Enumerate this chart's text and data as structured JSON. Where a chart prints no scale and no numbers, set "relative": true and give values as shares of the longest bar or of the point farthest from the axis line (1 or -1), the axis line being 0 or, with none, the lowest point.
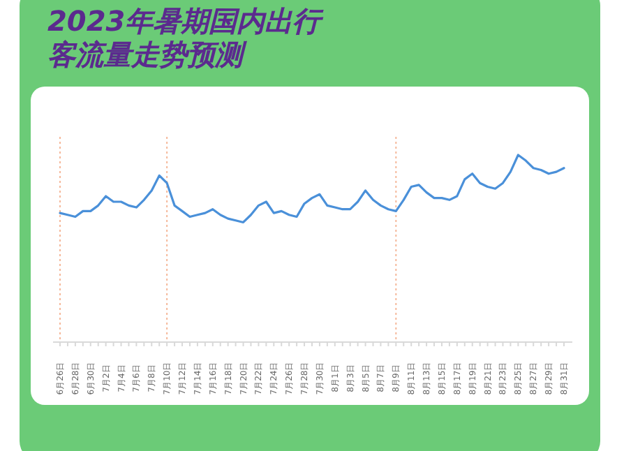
{
  "chart_data": {
    "type": "line",
    "title": "2023年暑期国内出行",
    "subtitle": "客流量走势预测",
    "relative": true,
    "marker": "none",
    "line_style": "solid",
    "categories": [
      "6月26日",
      null,
      "6月28日",
      null,
      "6月30日",
      null,
      "7月2日",
      null,
      "7月4日",
      null,
      "7月6日",
      null,
      "7月8日",
      null,
      "7月10日",
      null,
      "7月12日",
      null,
      "7月14日",
      null,
      "7月16日",
      null,
      "7月18日",
      null,
      "7月20日",
      null,
      "7月22日",
      null,
      "7月24日",
      null,
      "7月26日",
      null,
      "7月28日",
      null,
      "7月30日",
      null,
      "8月1日",
      null,
      "8月3日",
      null,
      "8月5日",
      null,
      "8月7日",
      null,
      "8月9日",
      null,
      "8月11日",
      null,
      "8月13日",
      null,
      "8月15日",
      null,
      "8月17日",
      null,
      "8月19日",
      null,
      "8月21日",
      null,
      "8月23日",
      null,
      "8月25日",
      null,
      "8月27日",
      null,
      "8月29日",
      null,
      "8月31日"
    ],
    "series": [
      {
        "color": "#4a90d9",
        "values": [
          0.69,
          0.68,
          0.67,
          0.7,
          0.7,
          0.73,
          0.78,
          0.75,
          0.75,
          0.73,
          0.72,
          0.76,
          0.81,
          0.89,
          0.85,
          0.73,
          0.7,
          0.67,
          0.68,
          0.69,
          0.71,
          0.68,
          0.66,
          0.65,
          0.64,
          0.68,
          0.73,
          0.75,
          0.69,
          0.7,
          0.68,
          0.67,
          0.74,
          0.77,
          0.79,
          0.73,
          0.72,
          0.71,
          0.71,
          0.75,
          0.81,
          0.76,
          0.73,
          0.71,
          0.7,
          0.76,
          0.83,
          0.84,
          0.8,
          0.77,
          0.77,
          0.76,
          0.78,
          0.87,
          0.9,
          0.85,
          0.83,
          0.82,
          0.85,
          0.91,
          1,
          0.97,
          0.93,
          0.92,
          0.9,
          0.91,
          0.93
        ]
      }
    ],
    "ref_lines": [
      {
        "axis": "x",
        "value": "6月26日",
        "color": "#f5b89a",
        "line_style": "dotted"
      },
      {
        "axis": "x",
        "value": "7月10日",
        "color": "#f5b89a",
        "line_style": "dotted"
      },
      {
        "axis": "x",
        "value": "8月9日",
        "color": "#f5b89a",
        "line_style": "dotted"
      }
    ]
  }
}
